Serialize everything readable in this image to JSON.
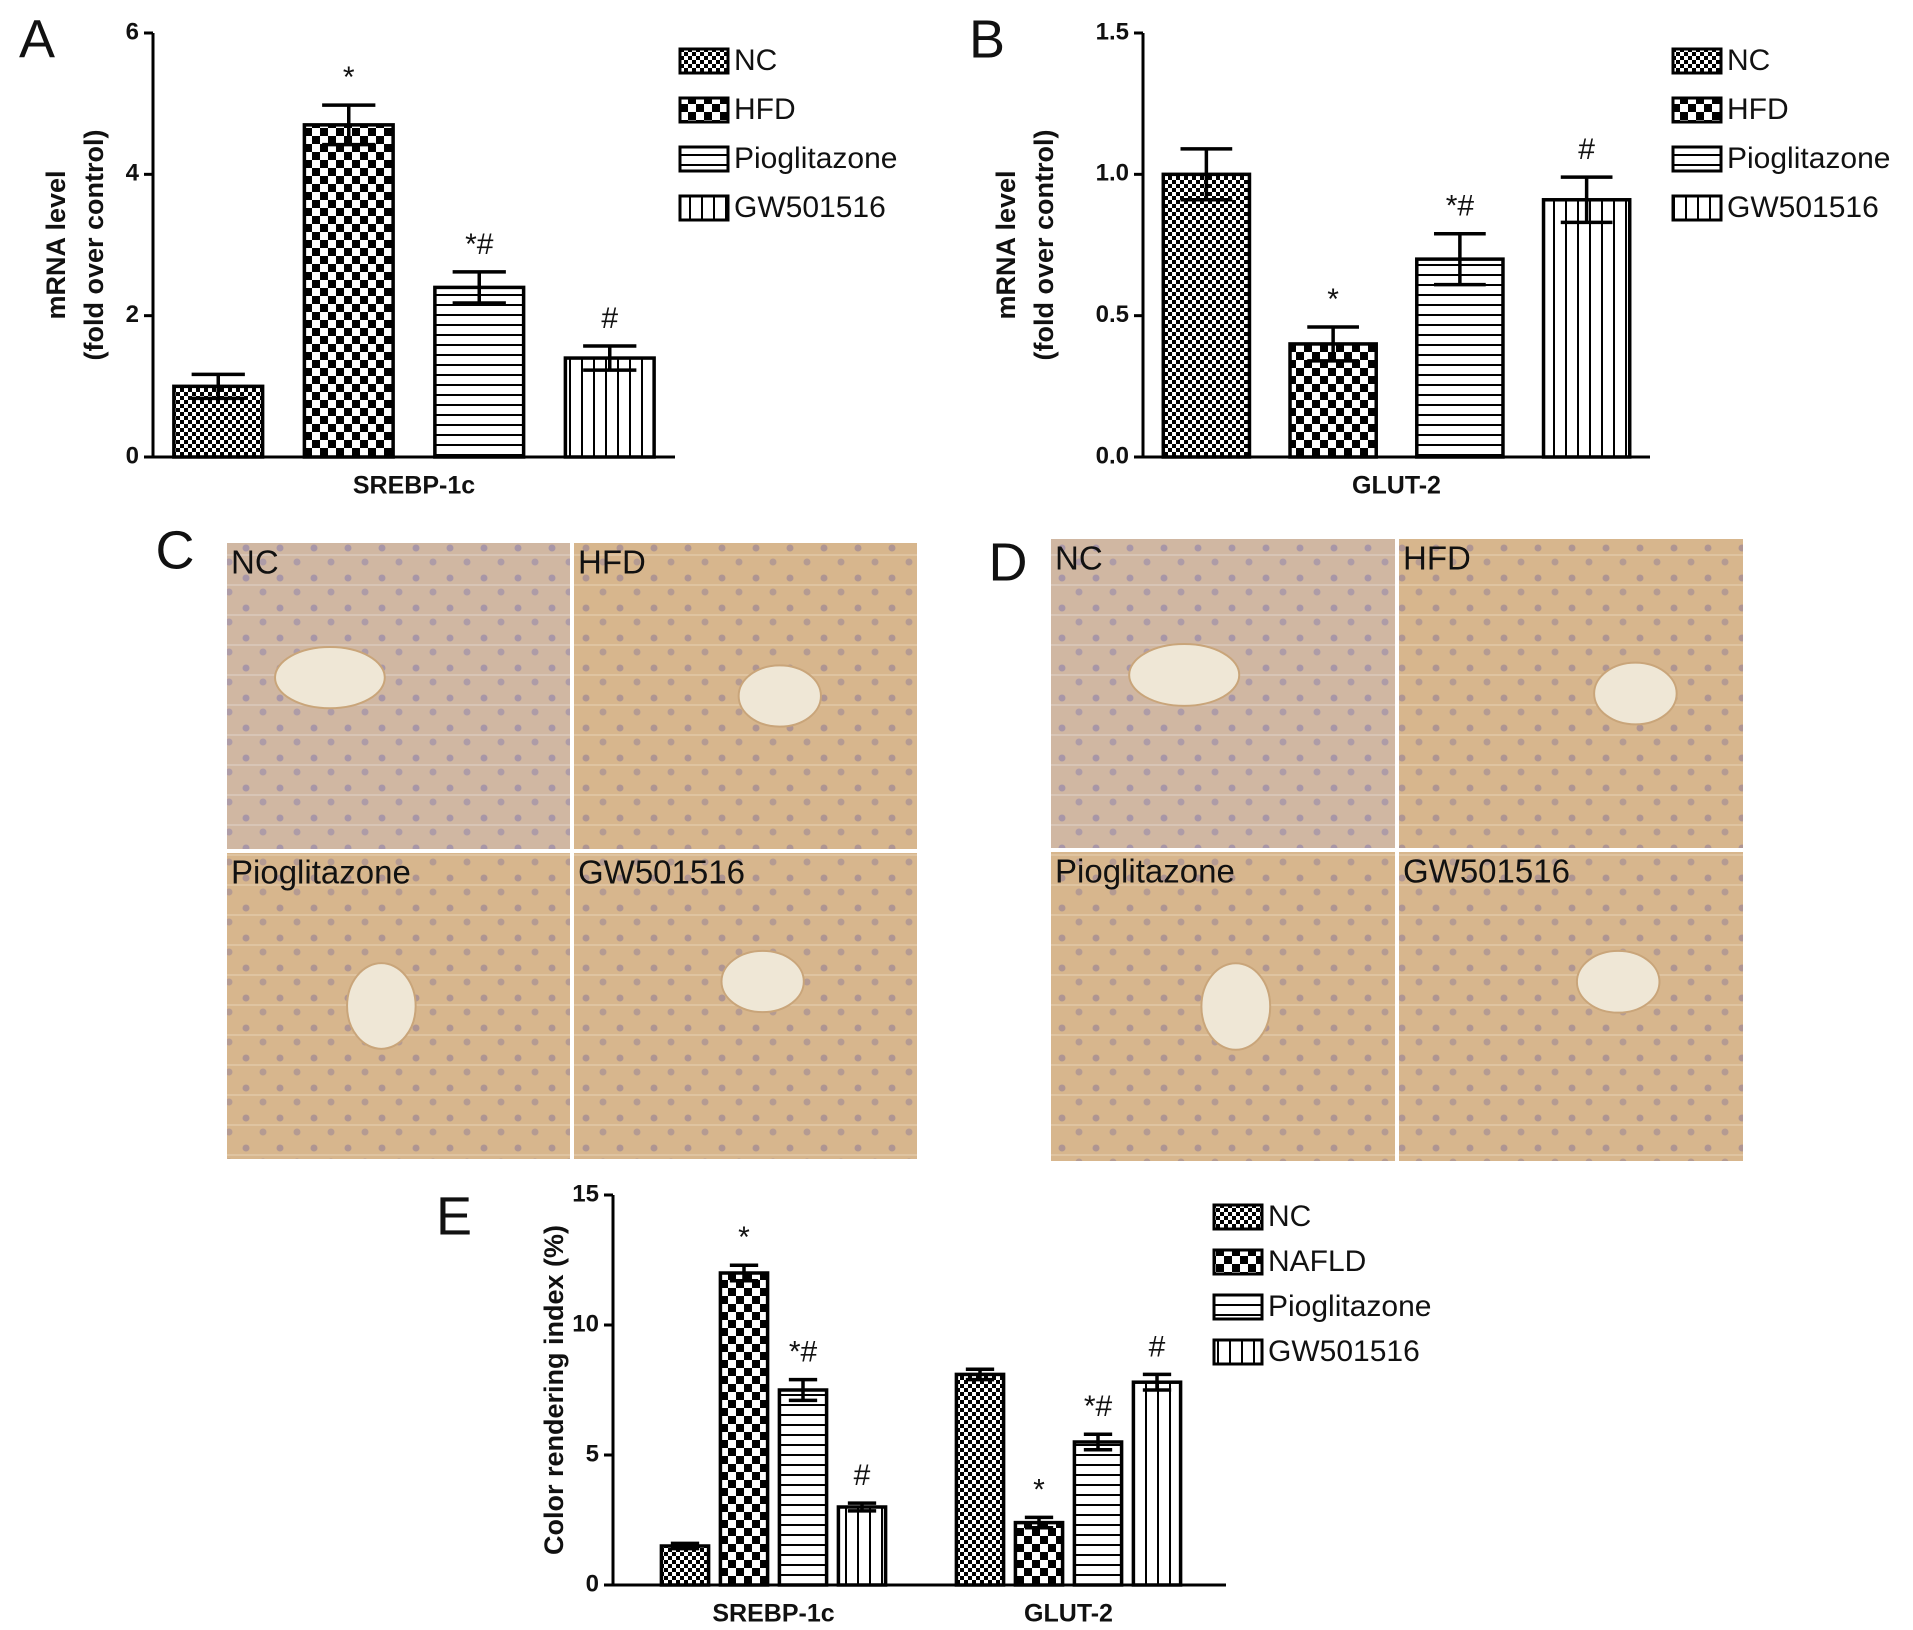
{
  "chart_data": [
    {
      "type": "bar",
      "panel": "A",
      "y_label": [
        "mRNA level",
        "(fold over control)"
      ],
      "categories": [
        "SREBP-1c"
      ],
      "ylim": [
        0,
        6
      ],
      "yticks": [
        0,
        2,
        4,
        6
      ],
      "series": [
        {
          "name": "NC",
          "pattern": "fine-checker",
          "color": "#000000",
          "values": [
            1.0
          ],
          "errors": [
            0.17
          ],
          "annotations": [
            null
          ]
        },
        {
          "name": "HFD",
          "pattern": "checker",
          "color": "#000000",
          "values": [
            4.7
          ],
          "errors": [
            0.28
          ],
          "annotations": [
            "*"
          ]
        },
        {
          "name": "Pioglitazone",
          "pattern": "horizontal",
          "color": "#000000",
          "values": [
            2.4
          ],
          "errors": [
            0.22
          ],
          "annotations": [
            "*#"
          ]
        },
        {
          "name": "GW501516",
          "pattern": "vertical",
          "color": "#000000",
          "values": [
            1.4
          ],
          "errors": [
            0.17
          ],
          "annotations": [
            "#"
          ]
        }
      ]
    },
    {
      "type": "bar",
      "panel": "B",
      "y_label": [
        "mRNA level",
        "(fold over control)"
      ],
      "categories": [
        "GLUT-2"
      ],
      "ylim": [
        0,
        1.5
      ],
      "yticks": [
        {
          "value": 0,
          "label": "0.0"
        },
        {
          "value": 0.5,
          "label": "0.5"
        },
        {
          "value": 1,
          "label": "1.0"
        },
        {
          "value": 1.5,
          "label": "1.5"
        }
      ],
      "series": [
        {
          "name": "NC",
          "pattern": "fine-checker",
          "color": "#000000",
          "values": [
            1.0
          ],
          "errors": [
            0.09
          ],
          "annotations": [
            null
          ]
        },
        {
          "name": "HFD",
          "pattern": "checker",
          "color": "#000000",
          "values": [
            0.4
          ],
          "errors": [
            0.06
          ],
          "annotations": [
            "*"
          ]
        },
        {
          "name": "Pioglitazone",
          "pattern": "horizontal",
          "color": "#000000",
          "values": [
            0.7
          ],
          "errors": [
            0.09
          ],
          "annotations": [
            "*#"
          ]
        },
        {
          "name": "GW501516",
          "pattern": "vertical",
          "color": "#000000",
          "values": [
            0.91
          ],
          "errors": [
            0.08
          ],
          "annotations": [
            "#"
          ]
        }
      ]
    },
    {
      "type": "bar",
      "panel": "E",
      "y_label": [
        "Color rendering index (%)"
      ],
      "categories": [
        "SREBP-1c",
        "GLUT-2"
      ],
      "ylim": [
        0,
        15
      ],
      "yticks": [
        0,
        5,
        10,
        15
      ],
      "series": [
        {
          "name": "NC",
          "pattern": "fine-checker",
          "color": "#000000",
          "values": [
            1.5,
            8.1
          ],
          "errors": [
            0.1,
            0.2
          ],
          "annotations": [
            null,
            null
          ]
        },
        {
          "name": "NAFLD",
          "pattern": "checker",
          "color": "#000000",
          "values": [
            12.0,
            2.4
          ],
          "errors": [
            0.3,
            0.2
          ],
          "annotations": [
            "*",
            "*"
          ]
        },
        {
          "name": "Pioglitazone",
          "pattern": "horizontal",
          "color": "#000000",
          "values": [
            7.5,
            5.5
          ],
          "errors": [
            0.4,
            0.3
          ],
          "annotations": [
            "*#",
            "*#"
          ]
        },
        {
          "name": "GW501516",
          "pattern": "vertical",
          "color": "#000000",
          "values": [
            3.0,
            7.8
          ],
          "errors": [
            0.15,
            0.3
          ],
          "annotations": [
            "#",
            "#"
          ]
        }
      ]
    }
  ],
  "micrographs": [
    {
      "panel": "C",
      "labels": [
        "NC",
        "HFD",
        "Pioglitazone",
        "GW501516"
      ]
    },
    {
      "panel": "D",
      "labels": [
        "NC",
        "HFD",
        "Pioglitazone",
        "GW501516"
      ]
    }
  ]
}
